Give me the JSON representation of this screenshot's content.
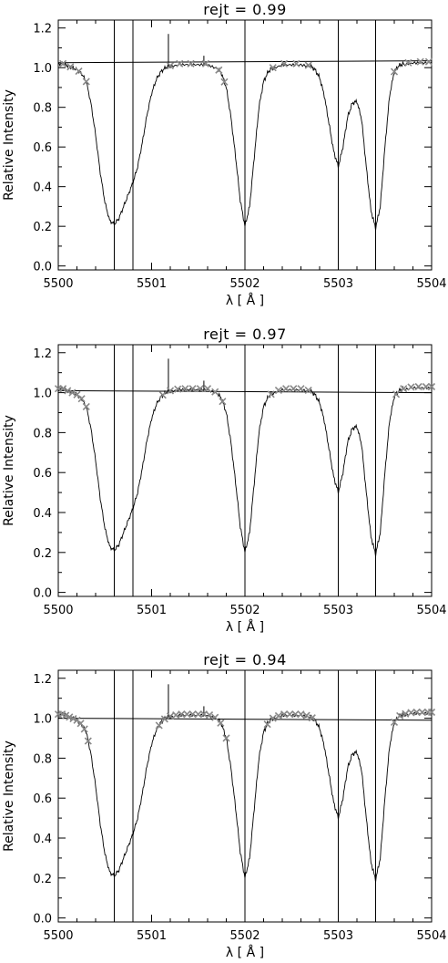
{
  "chart_data": [
    {
      "type": "line",
      "title": "rejt = 0.99",
      "xlabel": "λ [ Å ]",
      "ylabel": "Relative Intensity",
      "xlim": [
        5500,
        5504
      ],
      "ylim": [
        -0.02,
        1.24
      ],
      "x_ticks": [
        "5500",
        "5501",
        "5502",
        "5503",
        "5504"
      ],
      "y_ticks": [
        "0.0",
        "0.2",
        "0.4",
        "0.6",
        "0.8",
        "1.0",
        "1.2"
      ],
      "line_positions": [
        5500.6,
        5500.8,
        5502.0,
        5503.0,
        5503.4
      ],
      "continuum": {
        "x": [
          5500,
          5504
        ],
        "y": [
          1.025,
          1.035
        ]
      },
      "continuum_markers_x": [
        5500.05,
        5500.13,
        5500.22,
        5500.3,
        5501.2,
        5501.3,
        5501.42,
        5501.58,
        5501.72,
        5501.78,
        5502.3,
        5502.42,
        5502.55,
        5502.68,
        5503.6,
        5503.75,
        5503.88,
        5503.97
      ],
      "spectrum": {
        "x": [
          5500.0,
          5500.05,
          5500.1,
          5500.15,
          5500.2,
          5500.25,
          5500.3,
          5500.35,
          5500.4,
          5500.45,
          5500.5,
          5500.55,
          5500.6,
          5500.65,
          5500.7,
          5500.75,
          5500.8,
          5500.85,
          5500.9,
          5500.95,
          5501.0,
          5501.05,
          5501.1,
          5501.15,
          5501.2,
          5501.3,
          5501.4,
          5501.5,
          5501.6,
          5501.7,
          5501.75,
          5501.8,
          5501.85,
          5501.9,
          5501.95,
          5502.0,
          5502.05,
          5502.1,
          5502.15,
          5502.2,
          5502.25,
          5502.3,
          5502.4,
          5502.5,
          5502.6,
          5502.7,
          5502.75,
          5502.8,
          5502.85,
          5502.9,
          5502.95,
          5503.0,
          5503.05,
          5503.1,
          5503.15,
          5503.2,
          5503.25,
          5503.3,
          5503.35,
          5503.4,
          5503.45,
          5503.5,
          5503.55,
          5503.6,
          5503.65,
          5503.7,
          5503.8,
          5503.9,
          5504.0
        ],
        "y": [
          1.02,
          1.02,
          1.01,
          1.0,
          0.99,
          0.97,
          0.93,
          0.82,
          0.66,
          0.47,
          0.32,
          0.23,
          0.21,
          0.24,
          0.3,
          0.36,
          0.42,
          0.5,
          0.62,
          0.76,
          0.87,
          0.94,
          0.98,
          1.0,
          1.01,
          1.02,
          1.02,
          1.02,
          1.02,
          1.0,
          0.97,
          0.9,
          0.75,
          0.55,
          0.33,
          0.2,
          0.3,
          0.55,
          0.8,
          0.93,
          0.98,
          1.0,
          1.02,
          1.02,
          1.02,
          1.01,
          0.99,
          0.95,
          0.86,
          0.72,
          0.58,
          0.5,
          0.6,
          0.75,
          0.82,
          0.83,
          0.74,
          0.5,
          0.28,
          0.19,
          0.3,
          0.6,
          0.86,
          0.98,
          1.01,
          1.02,
          1.03,
          1.03,
          1.03
        ],
        "spikes": [
          {
            "x": 5501.18,
            "y": 1.17
          },
          {
            "x": 5501.56,
            "y": 1.06
          }
        ]
      }
    },
    {
      "type": "line",
      "title": "rejt = 0.97",
      "xlabel": "λ [ Å ]",
      "ylabel": "Relative Intensity",
      "xlim": [
        5500,
        5504
      ],
      "ylim": [
        -0.02,
        1.24
      ],
      "x_ticks": [
        "5500",
        "5501",
        "5502",
        "5503",
        "5504"
      ],
      "y_ticks": [
        "0.0",
        "0.2",
        "0.4",
        "0.6",
        "0.8",
        "1.0",
        "1.2"
      ],
      "line_positions": [
        5500.6,
        5500.8,
        5502.0,
        5503.0,
        5503.4
      ],
      "continuum": {
        "x": [
          5500,
          5504
        ],
        "y": [
          1.01,
          1.0
        ]
      },
      "continuum_markers_x": [
        5500.0,
        5500.05,
        5500.1,
        5500.15,
        5500.2,
        5500.25,
        5500.3,
        5501.12,
        5501.2,
        5501.28,
        5501.36,
        5501.44,
        5501.52,
        5501.6,
        5501.68,
        5501.76,
        5502.28,
        5502.36,
        5502.44,
        5502.52,
        5502.6,
        5502.68,
        5503.62,
        5503.7,
        5503.78,
        5503.86,
        5503.94,
        5504.0
      ],
      "spectrum": {
        "x": [
          5500.0,
          5500.05,
          5500.1,
          5500.15,
          5500.2,
          5500.25,
          5500.3,
          5500.35,
          5500.4,
          5500.45,
          5500.5,
          5500.55,
          5500.6,
          5500.65,
          5500.7,
          5500.75,
          5500.8,
          5500.85,
          5500.9,
          5500.95,
          5501.0,
          5501.05,
          5501.1,
          5501.15,
          5501.2,
          5501.3,
          5501.4,
          5501.5,
          5501.6,
          5501.7,
          5501.75,
          5501.8,
          5501.85,
          5501.9,
          5501.95,
          5502.0,
          5502.05,
          5502.1,
          5502.15,
          5502.2,
          5502.25,
          5502.3,
          5502.4,
          5502.5,
          5502.6,
          5502.7,
          5502.75,
          5502.8,
          5502.85,
          5502.9,
          5502.95,
          5503.0,
          5503.05,
          5503.1,
          5503.15,
          5503.2,
          5503.25,
          5503.3,
          5503.35,
          5503.4,
          5503.45,
          5503.5,
          5503.55,
          5503.6,
          5503.65,
          5503.7,
          5503.8,
          5503.9,
          5504.0
        ],
        "y": [
          1.02,
          1.02,
          1.01,
          1.0,
          0.99,
          0.97,
          0.93,
          0.82,
          0.66,
          0.47,
          0.32,
          0.23,
          0.21,
          0.24,
          0.3,
          0.36,
          0.42,
          0.5,
          0.62,
          0.76,
          0.87,
          0.94,
          0.98,
          1.0,
          1.01,
          1.02,
          1.02,
          1.02,
          1.02,
          1.0,
          0.97,
          0.9,
          0.75,
          0.55,
          0.33,
          0.2,
          0.3,
          0.55,
          0.8,
          0.93,
          0.98,
          1.0,
          1.02,
          1.02,
          1.02,
          1.01,
          0.99,
          0.95,
          0.86,
          0.72,
          0.58,
          0.5,
          0.6,
          0.75,
          0.82,
          0.83,
          0.74,
          0.5,
          0.28,
          0.19,
          0.3,
          0.6,
          0.86,
          0.98,
          1.01,
          1.02,
          1.03,
          1.03,
          1.03
        ],
        "spikes": [
          {
            "x": 5501.18,
            "y": 1.17
          },
          {
            "x": 5501.56,
            "y": 1.06
          }
        ]
      }
    },
    {
      "type": "line",
      "title": "rejt = 0.94",
      "xlabel": "λ [ Å ]",
      "ylabel": "Relative Intensity",
      "xlim": [
        5500,
        5504
      ],
      "ylim": [
        -0.02,
        1.24
      ],
      "x_ticks": [
        "5500",
        "5501",
        "5502",
        "5503",
        "5504"
      ],
      "y_ticks": [
        "0.0",
        "0.2",
        "0.4",
        "0.6",
        "0.8",
        "1.0",
        "1.2"
      ],
      "line_positions": [
        5500.6,
        5500.8,
        5502.0,
        5503.0,
        5503.4
      ],
      "continuum": {
        "x": [
          5500,
          5504
        ],
        "y": [
          1.0,
          0.99
        ]
      },
      "continuum_markers_x": [
        5500.0,
        5500.04,
        5500.08,
        5500.12,
        5500.16,
        5500.2,
        5500.24,
        5500.28,
        5500.32,
        5501.08,
        5501.14,
        5501.2,
        5501.26,
        5501.32,
        5501.38,
        5501.44,
        5501.5,
        5501.56,
        5501.62,
        5501.68,
        5501.74,
        5501.8,
        5502.24,
        5502.3,
        5502.36,
        5502.42,
        5502.48,
        5502.54,
        5502.6,
        5502.66,
        5502.72,
        5503.6,
        5503.66,
        5503.72,
        5503.78,
        5503.84,
        5503.9,
        5503.96,
        5504.0
      ],
      "spectrum": {
        "x": [
          5500.0,
          5500.05,
          5500.1,
          5500.15,
          5500.2,
          5500.25,
          5500.3,
          5500.35,
          5500.4,
          5500.45,
          5500.5,
          5500.55,
          5500.6,
          5500.65,
          5500.7,
          5500.75,
          5500.8,
          5500.85,
          5500.9,
          5500.95,
          5501.0,
          5501.05,
          5501.1,
          5501.15,
          5501.2,
          5501.3,
          5501.4,
          5501.5,
          5501.6,
          5501.7,
          5501.75,
          5501.8,
          5501.85,
          5501.9,
          5501.95,
          5502.0,
          5502.05,
          5502.1,
          5502.15,
          5502.2,
          5502.25,
          5502.3,
          5502.4,
          5502.5,
          5502.6,
          5502.7,
          5502.75,
          5502.8,
          5502.85,
          5502.9,
          5502.95,
          5503.0,
          5503.05,
          5503.1,
          5503.15,
          5503.2,
          5503.25,
          5503.3,
          5503.35,
          5503.4,
          5503.45,
          5503.5,
          5503.55,
          5503.6,
          5503.65,
          5503.7,
          5503.8,
          5503.9,
          5504.0
        ],
        "y": [
          1.02,
          1.02,
          1.01,
          1.0,
          0.99,
          0.97,
          0.93,
          0.82,
          0.66,
          0.47,
          0.32,
          0.23,
          0.21,
          0.24,
          0.3,
          0.36,
          0.42,
          0.5,
          0.62,
          0.76,
          0.87,
          0.94,
          0.98,
          1.0,
          1.01,
          1.02,
          1.02,
          1.02,
          1.02,
          1.0,
          0.97,
          0.9,
          0.75,
          0.55,
          0.33,
          0.2,
          0.3,
          0.55,
          0.8,
          0.93,
          0.98,
          1.0,
          1.02,
          1.02,
          1.02,
          1.01,
          0.99,
          0.95,
          0.86,
          0.72,
          0.58,
          0.5,
          0.6,
          0.75,
          0.82,
          0.83,
          0.74,
          0.5,
          0.28,
          0.19,
          0.3,
          0.6,
          0.86,
          0.98,
          1.01,
          1.02,
          1.03,
          1.03,
          1.03
        ],
        "spikes": [
          {
            "x": 5501.18,
            "y": 1.17
          },
          {
            "x": 5501.56,
            "y": 1.06
          }
        ]
      }
    }
  ]
}
